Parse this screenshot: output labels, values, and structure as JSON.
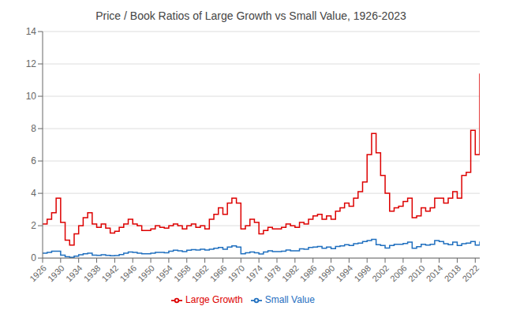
{
  "chart_data": {
    "type": "line",
    "title": "Price / Book Ratios of Large Growth vs Small Value, 1926-2023",
    "x": [
      1926,
      1927,
      1928,
      1929,
      1930,
      1931,
      1932,
      1933,
      1934,
      1935,
      1936,
      1937,
      1938,
      1939,
      1940,
      1941,
      1942,
      1943,
      1944,
      1945,
      1946,
      1947,
      1948,
      1949,
      1950,
      1951,
      1952,
      1953,
      1954,
      1955,
      1956,
      1957,
      1958,
      1959,
      1960,
      1961,
      1962,
      1963,
      1964,
      1965,
      1966,
      1967,
      1968,
      1969,
      1970,
      1971,
      1972,
      1973,
      1974,
      1975,
      1976,
      1977,
      1978,
      1979,
      1980,
      1981,
      1982,
      1983,
      1984,
      1985,
      1986,
      1987,
      1988,
      1989,
      1990,
      1991,
      1992,
      1993,
      1994,
      1995,
      1996,
      1997,
      1998,
      1999,
      2000,
      2001,
      2002,
      2003,
      2004,
      2005,
      2006,
      2007,
      2008,
      2009,
      2010,
      2011,
      2012,
      2013,
      2014,
      2015,
      2016,
      2017,
      2018,
      2019,
      2020,
      2021,
      2022,
      2023
    ],
    "series": [
      {
        "name": "Small Value",
        "color": "#1f6fbf",
        "values": [
          0.3,
          0.35,
          0.42,
          0.42,
          0.18,
          0.08,
          0.04,
          0.12,
          0.2,
          0.26,
          0.3,
          0.18,
          0.17,
          0.2,
          0.17,
          0.14,
          0.15,
          0.22,
          0.3,
          0.38,
          0.35,
          0.3,
          0.26,
          0.26,
          0.3,
          0.35,
          0.35,
          0.32,
          0.42,
          0.48,
          0.45,
          0.4,
          0.48,
          0.52,
          0.5,
          0.55,
          0.5,
          0.55,
          0.6,
          0.65,
          0.55,
          0.68,
          0.75,
          0.68,
          0.26,
          0.32,
          0.38,
          0.32,
          0.25,
          0.38,
          0.45,
          0.4,
          0.4,
          0.42,
          0.5,
          0.45,
          0.45,
          0.57,
          0.55,
          0.65,
          0.68,
          0.72,
          0.6,
          0.68,
          0.58,
          0.72,
          0.75,
          0.82,
          0.78,
          0.88,
          0.92,
          1.02,
          1.08,
          1.15,
          0.82,
          0.78,
          0.62,
          0.78,
          0.85,
          0.85,
          0.9,
          0.98,
          0.6,
          0.7,
          0.85,
          0.8,
          0.85,
          1.08,
          1.02,
          0.88,
          0.82,
          0.98,
          0.78,
          0.88,
          0.92,
          1.02,
          0.8,
          1.02
        ]
      },
      {
        "name": "Large Growth",
        "color": "#dd0000",
        "values": [
          2.1,
          2.4,
          2.8,
          3.7,
          2.2,
          1.1,
          0.8,
          1.5,
          2.0,
          2.5,
          2.8,
          2.1,
          1.9,
          2.1,
          1.85,
          1.55,
          1.65,
          1.9,
          2.1,
          2.4,
          2.1,
          2.0,
          1.7,
          1.7,
          1.8,
          2.0,
          1.9,
          1.85,
          2.0,
          2.1,
          2.0,
          1.8,
          2.0,
          2.1,
          1.9,
          2.0,
          1.8,
          2.4,
          2.7,
          3.1,
          2.7,
          3.4,
          3.7,
          3.4,
          1.8,
          2.0,
          2.4,
          2.2,
          1.5,
          1.7,
          1.9,
          1.8,
          1.8,
          1.9,
          2.1,
          2.0,
          1.9,
          2.2,
          2.1,
          2.4,
          2.6,
          2.7,
          2.4,
          2.6,
          2.4,
          2.9,
          3.1,
          3.4,
          3.2,
          3.7,
          4.1,
          4.7,
          6.4,
          7.7,
          6.5,
          5.1,
          4.0,
          2.9,
          3.1,
          3.2,
          3.5,
          3.7,
          2.5,
          2.6,
          3.1,
          2.9,
          3.1,
          3.7,
          3.7,
          3.4,
          3.7,
          4.1,
          3.7,
          5.1,
          5.3,
          7.9,
          6.4,
          11.4
        ]
      }
    ],
    "xlim": [
      1926,
      2023
    ],
    "xticks": [
      1926,
      1930,
      1934,
      1938,
      1942,
      1946,
      1950,
      1954,
      1958,
      1962,
      1966,
      1970,
      1974,
      1978,
      1982,
      1986,
      1990,
      1994,
      1998,
      2002,
      2006,
      2010,
      2014,
      2018,
      2022
    ],
    "ylim": [
      0,
      14
    ],
    "yticks": [
      0,
      2,
      4,
      6,
      8,
      10,
      12,
      14
    ],
    "grid": true,
    "legend": "bottom"
  }
}
